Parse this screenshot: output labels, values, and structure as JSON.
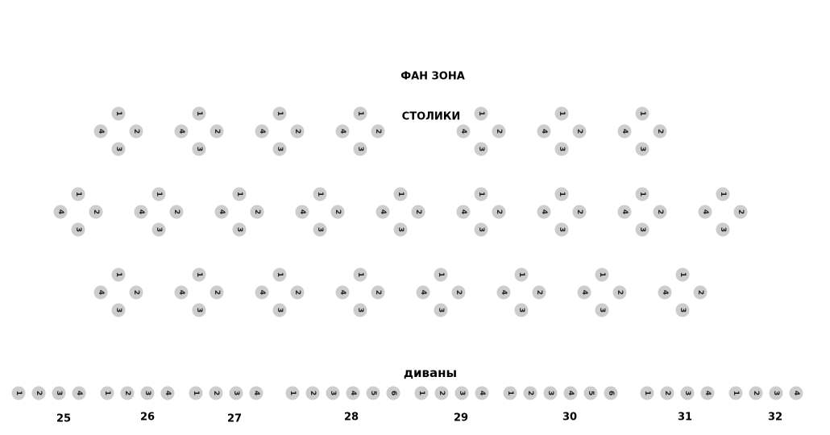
{
  "titles": {
    "fan_zone": "ФАН ЗОНА",
    "tables": "СТОЛИКИ",
    "sofas": "диваны"
  },
  "seat_color": "#cdcdcd",
  "table_rows": [
    {
      "tables": 7,
      "seats": [
        "1",
        "2",
        "3",
        "4"
      ]
    },
    {
      "tables": 9,
      "seats": [
        "1",
        "2",
        "3",
        "4"
      ]
    },
    {
      "tables": 8,
      "seats": [
        "1",
        "2",
        "3",
        "4"
      ]
    }
  ],
  "sofas": [
    {
      "label": "25",
      "seats": [
        "1",
        "2",
        "3",
        "4"
      ]
    },
    {
      "label": "26",
      "seats": [
        "1",
        "2",
        "3",
        "4"
      ]
    },
    {
      "label": "27",
      "seats": [
        "1",
        "2",
        "3",
        "4"
      ]
    },
    {
      "label": "28",
      "seats": [
        "1",
        "2",
        "3",
        "4",
        "5",
        "6"
      ]
    },
    {
      "label": "29",
      "seats": [
        "1",
        "2",
        "3",
        "4"
      ]
    },
    {
      "label": "30",
      "seats": [
        "1",
        "2",
        "3",
        "4",
        "5",
        "6"
      ]
    },
    {
      "label": "31",
      "seats": [
        "1",
        "2",
        "3",
        "4"
      ]
    },
    {
      "label": "32",
      "seats": [
        "1",
        "2",
        "3",
        "4"
      ]
    }
  ]
}
